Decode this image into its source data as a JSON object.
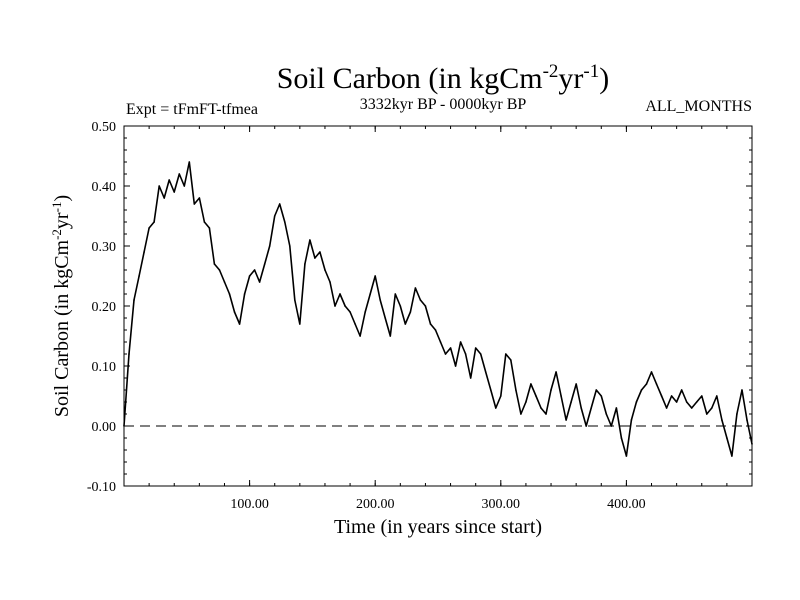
{
  "chart_data": {
    "type": "line",
    "title": {
      "prefix": "Soil Carbon (in kgCm",
      "sup1": "-2",
      "middle": "yr",
      "sup2": "-1",
      "suffix": ")"
    },
    "left_caption": "Expt = tFmFT-tfmea",
    "center_caption": "3332kyr BP - 0000kyr BP",
    "right_caption": "ALL_MONTHS",
    "xlabel": "Time (in years since start)",
    "ylabel": {
      "prefix": "Soil Carbon (in kgCm",
      "sup1": "-2",
      "middle": "yr",
      "sup2": "-1",
      "suffix": ")"
    },
    "xlim": [
      0,
      500
    ],
    "ylim": [
      -0.1,
      0.5
    ],
    "x_ticks": [
      100,
      200,
      300,
      400
    ],
    "x_tick_labels": [
      "100.00",
      "200.00",
      "300.00",
      "400.00"
    ],
    "y_ticks": [
      -0.1,
      0.0,
      0.1,
      0.2,
      0.3,
      0.4,
      0.5
    ],
    "y_tick_labels": [
      "-0.10",
      "0.00",
      "0.10",
      "0.20",
      "0.30",
      "0.40",
      "0.50"
    ],
    "reference_line": {
      "y": 0.0,
      "style": "dashed"
    },
    "series": [
      {
        "name": "Soil Carbon",
        "color": "#000000",
        "x": [
          0,
          4,
          8,
          12,
          16,
          20,
          24,
          28,
          32,
          36,
          40,
          44,
          48,
          52,
          56,
          60,
          64,
          68,
          72,
          76,
          80,
          84,
          88,
          92,
          96,
          100,
          104,
          108,
          112,
          116,
          120,
          124,
          128,
          132,
          136,
          140,
          144,
          148,
          152,
          156,
          160,
          164,
          168,
          172,
          176,
          180,
          184,
          188,
          192,
          196,
          200,
          204,
          208,
          212,
          216,
          220,
          224,
          228,
          232,
          236,
          240,
          244,
          248,
          252,
          256,
          260,
          264,
          268,
          272,
          276,
          280,
          284,
          288,
          292,
          296,
          300,
          304,
          308,
          312,
          316,
          320,
          324,
          328,
          332,
          336,
          340,
          344,
          348,
          352,
          356,
          360,
          364,
          368,
          372,
          376,
          380,
          384,
          388,
          392,
          396,
          400,
          404,
          408,
          412,
          416,
          420,
          424,
          428,
          432,
          436,
          440,
          444,
          448,
          452,
          456,
          460,
          464,
          468,
          472,
          476,
          480,
          484,
          488,
          492,
          496,
          500
        ],
        "y": [
          0.0,
          0.12,
          0.21,
          0.25,
          0.29,
          0.33,
          0.34,
          0.4,
          0.38,
          0.41,
          0.39,
          0.42,
          0.4,
          0.44,
          0.37,
          0.38,
          0.34,
          0.33,
          0.27,
          0.26,
          0.24,
          0.22,
          0.19,
          0.17,
          0.22,
          0.25,
          0.26,
          0.24,
          0.27,
          0.3,
          0.35,
          0.37,
          0.34,
          0.3,
          0.21,
          0.17,
          0.27,
          0.31,
          0.28,
          0.29,
          0.26,
          0.24,
          0.2,
          0.22,
          0.2,
          0.19,
          0.17,
          0.15,
          0.19,
          0.22,
          0.25,
          0.21,
          0.18,
          0.15,
          0.22,
          0.2,
          0.17,
          0.19,
          0.23,
          0.21,
          0.2,
          0.17,
          0.16,
          0.14,
          0.12,
          0.13,
          0.1,
          0.14,
          0.12,
          0.08,
          0.13,
          0.12,
          0.09,
          0.06,
          0.03,
          0.05,
          0.12,
          0.11,
          0.06,
          0.02,
          0.04,
          0.07,
          0.05,
          0.03,
          0.02,
          0.06,
          0.09,
          0.05,
          0.01,
          0.04,
          0.07,
          0.03,
          0.0,
          0.03,
          0.06,
          0.05,
          0.02,
          0.0,
          0.03,
          -0.02,
          -0.05,
          0.01,
          0.04,
          0.06,
          0.07,
          0.09,
          0.07,
          0.05,
          0.03,
          0.05,
          0.04,
          0.06,
          0.04,
          0.03,
          0.04,
          0.05,
          0.02,
          0.03,
          0.05,
          0.01,
          -0.02,
          -0.05,
          0.02,
          0.06,
          0.01,
          -0.03
        ]
      }
    ]
  }
}
